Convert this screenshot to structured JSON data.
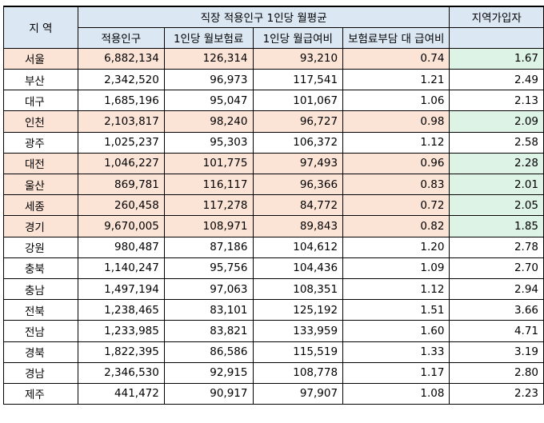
{
  "header": {
    "region": "지 역",
    "group": "직장 적용인구 1인당 월평균",
    "last_top": "지역가입자",
    "cols": [
      "적용인구",
      "1인당 월보험료",
      "1인당 월급여비",
      "보험료부담 대 급여비"
    ]
  },
  "rows": [
    {
      "region": "서울",
      "pop": "6,882,134",
      "premium": "126,314",
      "benefit": "93,210",
      "ratio": "0.74",
      "local": "1.67",
      "hl": true
    },
    {
      "region": "부산",
      "pop": "2,342,520",
      "premium": "96,973",
      "benefit": "117,541",
      "ratio": "1.21",
      "local": "2.49",
      "hl": false
    },
    {
      "region": "대구",
      "pop": "1,685,196",
      "premium": "95,047",
      "benefit": "101,067",
      "ratio": "1.06",
      "local": "2.13",
      "hl": false
    },
    {
      "region": "인천",
      "pop": "2,103,817",
      "premium": "98,240",
      "benefit": "96,727",
      "ratio": "0.98",
      "local": "2.09",
      "hl": true
    },
    {
      "region": "광주",
      "pop": "1,025,237",
      "premium": "95,303",
      "benefit": "106,372",
      "ratio": "1.12",
      "local": "2.58",
      "hl": false
    },
    {
      "region": "대전",
      "pop": "1,046,227",
      "premium": "101,775",
      "benefit": "97,493",
      "ratio": "0.96",
      "local": "2.28",
      "hl": true
    },
    {
      "region": "울산",
      "pop": "869,781",
      "premium": "116,117",
      "benefit": "96,366",
      "ratio": "0.83",
      "local": "2.01",
      "hl": true
    },
    {
      "region": "세종",
      "pop": "260,458",
      "premium": "117,278",
      "benefit": "84,772",
      "ratio": "0.72",
      "local": "2.05",
      "hl": true
    },
    {
      "region": "경기",
      "pop": "9,670,005",
      "premium": "108,971",
      "benefit": "89,843",
      "ratio": "0.82",
      "local": "1.85",
      "hl": true
    },
    {
      "region": "강원",
      "pop": "980,487",
      "premium": "87,186",
      "benefit": "104,612",
      "ratio": "1.20",
      "local": "2.78",
      "hl": false
    },
    {
      "region": "충북",
      "pop": "1,140,247",
      "premium": "95,756",
      "benefit": "104,436",
      "ratio": "1.09",
      "local": "2.70",
      "hl": false
    },
    {
      "region": "충남",
      "pop": "1,497,194",
      "premium": "97,063",
      "benefit": "108,351",
      "ratio": "1.12",
      "local": "2.94",
      "hl": false
    },
    {
      "region": "전북",
      "pop": "1,238,465",
      "premium": "83,101",
      "benefit": "125,192",
      "ratio": "1.51",
      "local": "3.66",
      "hl": false
    },
    {
      "region": "전남",
      "pop": "1,233,985",
      "premium": "83,821",
      "benefit": "133,959",
      "ratio": "1.60",
      "local": "4.71",
      "hl": false
    },
    {
      "region": "경북",
      "pop": "1,822,395",
      "premium": "86,586",
      "benefit": "115,519",
      "ratio": "1.33",
      "local": "3.19",
      "hl": false
    },
    {
      "region": "경남",
      "pop": "2,346,530",
      "premium": "92,915",
      "benefit": "108,778",
      "ratio": "1.17",
      "local": "2.80",
      "hl": false
    },
    {
      "region": "제주",
      "pop": "441,472",
      "premium": "90,917",
      "benefit": "97,907",
      "ratio": "1.08",
      "local": "2.23",
      "hl": false
    }
  ]
}
